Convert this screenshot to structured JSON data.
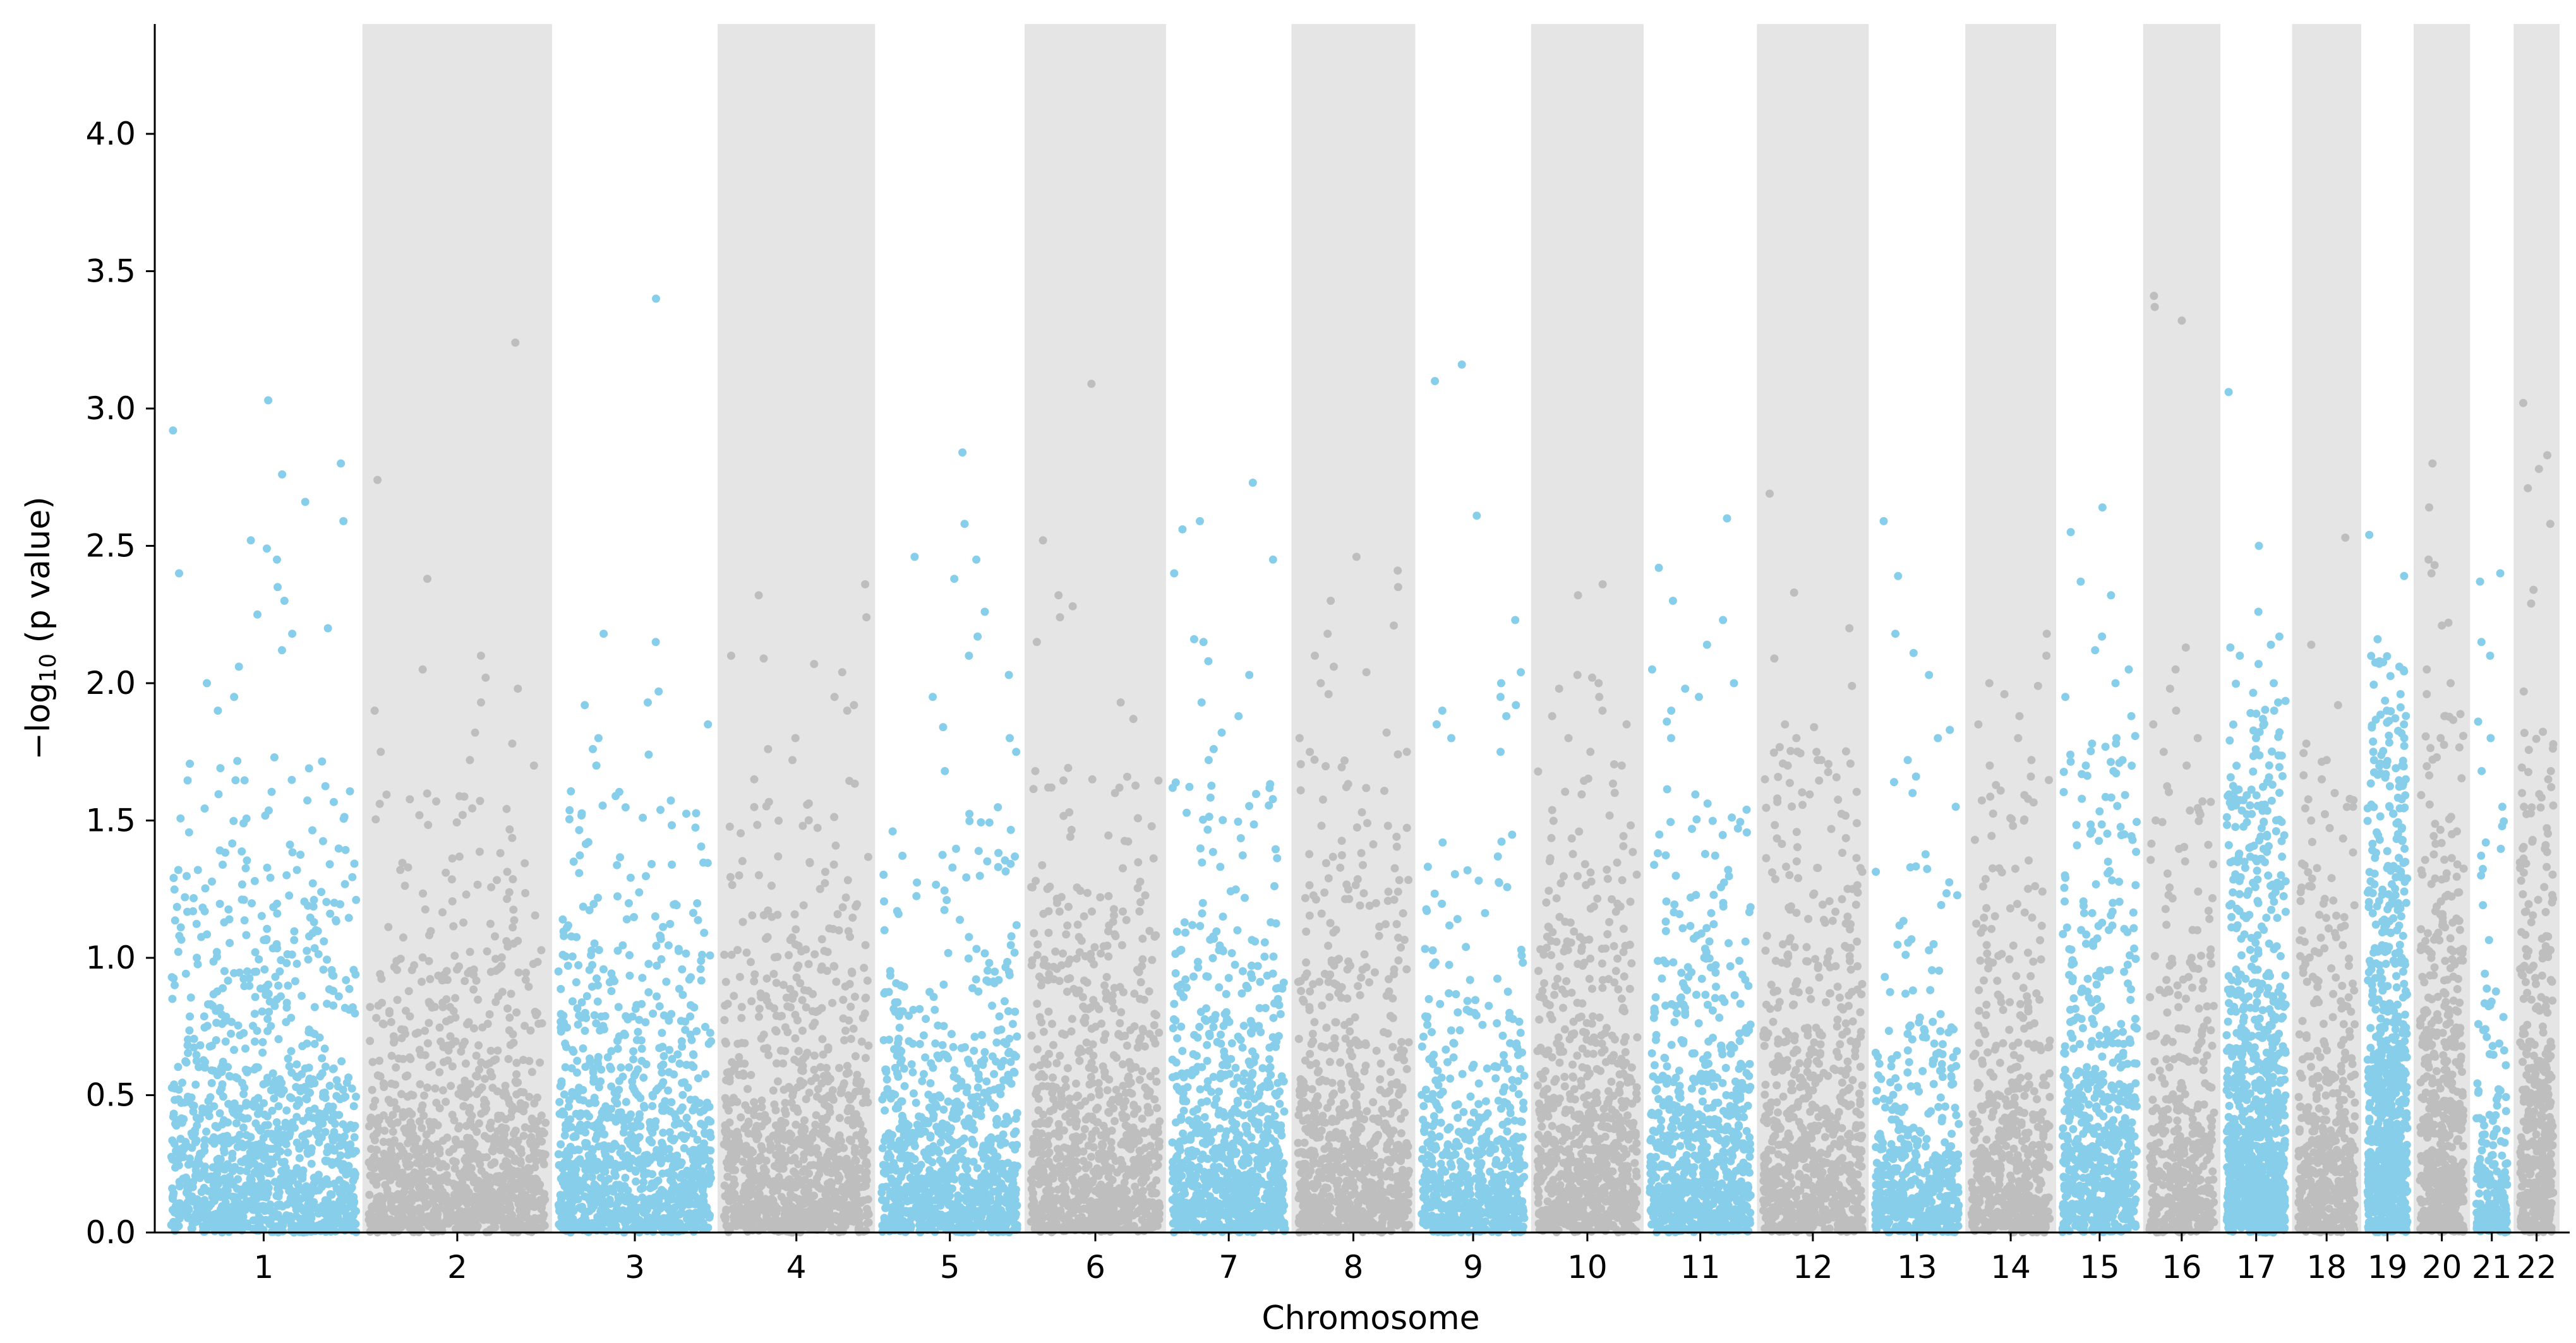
{
  "chart_data": {
    "type": "scatter",
    "subtype": "manhattan",
    "title": "",
    "xlabel": "Chromosome",
    "ylabel": {
      "prefix": "−log",
      "subscript": "10",
      "suffix": " (p value)"
    },
    "ylim": [
      0.0,
      4.4
    ],
    "yticks": [
      "0.0",
      "0.5",
      "1.0",
      "1.5",
      "2.0",
      "2.5",
      "3.0",
      "3.5",
      "4.0"
    ],
    "ytick_values": [
      0.0,
      0.5,
      1.0,
      1.5,
      2.0,
      2.5,
      3.0,
      3.5,
      4.0
    ],
    "grid": false,
    "legend": "none",
    "shading": "alternating chromosomes shaded light gray (#e5e5e5)",
    "colors": {
      "odd_points": "#87ceeb",
      "even_points": "#bebebe",
      "band": "#e5e5e5",
      "axis": "#000000"
    },
    "chromosomes": [
      {
        "label": "1",
        "span": 240,
        "n_points": 1100,
        "dense_max": 0.85,
        "peaks": [
          3.03,
          2.92,
          2.8,
          2.76,
          2.66,
          2.59,
          2.52,
          2.49,
          2.45,
          2.4,
          2.35,
          2.3,
          2.25,
          2.2,
          2.18,
          2.12,
          2.06,
          2.0,
          1.95,
          1.9
        ]
      },
      {
        "label": "2",
        "span": 230,
        "n_points": 1050,
        "dense_max": 0.7,
        "peaks": [
          3.24,
          2.74,
          2.38,
          2.1,
          2.05,
          2.02,
          1.98,
          1.93,
          1.9,
          1.82,
          1.78,
          1.75,
          1.72,
          1.7
        ]
      },
      {
        "label": "3",
        "span": 200,
        "n_points": 950,
        "dense_max": 0.75,
        "peaks": [
          3.4,
          2.18,
          2.15,
          1.97,
          1.93,
          1.92,
          1.85,
          1.8,
          1.76,
          1.74,
          1.7
        ]
      },
      {
        "label": "4",
        "span": 190,
        "n_points": 900,
        "dense_max": 0.75,
        "peaks": [
          2.36,
          2.32,
          2.24,
          2.1,
          2.09,
          2.07,
          2.04,
          1.95,
          1.92,
          1.9,
          1.8,
          1.76,
          1.72
        ]
      },
      {
        "label": "5",
        "span": 180,
        "n_points": 850,
        "dense_max": 0.65,
        "peaks": [
          2.84,
          2.58,
          2.46,
          2.45,
          2.38,
          2.26,
          2.17,
          2.1,
          2.03,
          1.95,
          1.84,
          1.8,
          1.75,
          1.68
        ]
      },
      {
        "label": "6",
        "span": 170,
        "n_points": 820,
        "dense_max": 0.8,
        "peaks": [
          3.09,
          2.52,
          2.32,
          2.28,
          2.24,
          2.15,
          1.93,
          1.87,
          1.68,
          1.65,
          1.62,
          1.6
        ]
      },
      {
        "label": "7",
        "span": 150,
        "n_points": 800,
        "dense_max": 0.75,
        "peaks": [
          2.73,
          2.59,
          2.56,
          2.45,
          2.4,
          2.16,
          2.15,
          2.08,
          2.03,
          1.93,
          1.88,
          1.82,
          1.76,
          1.72
        ]
      },
      {
        "label": "8",
        "span": 148,
        "n_points": 720,
        "dense_max": 0.85,
        "peaks": [
          2.46,
          2.41,
          2.35,
          2.3,
          2.21,
          2.18,
          2.1,
          2.06,
          2.04,
          2.0,
          1.96,
          1.82,
          1.8,
          1.75
        ]
      },
      {
        "label": "9",
        "span": 138,
        "n_points": 600,
        "dense_max": 0.55,
        "peaks": [
          3.16,
          3.1,
          2.61,
          2.23,
          2.04,
          2.0,
          1.95,
          1.92,
          1.9,
          1.88,
          1.85,
          1.8,
          1.75
        ]
      },
      {
        "label": "10",
        "span": 134,
        "n_points": 720,
        "dense_max": 0.85,
        "peaks": [
          2.36,
          2.32,
          2.03,
          2.02,
          2.0,
          1.98,
          1.95,
          1.9,
          1.88,
          1.85,
          1.8,
          1.75,
          1.7
        ]
      },
      {
        "label": "11",
        "span": 135,
        "n_points": 720,
        "dense_max": 0.75,
        "peaks": [
          2.6,
          2.42,
          2.3,
          2.23,
          2.14,
          2.05,
          2.0,
          1.98,
          1.95,
          1.9,
          1.86,
          1.8
        ]
      },
      {
        "label": "12",
        "span": 133,
        "n_points": 700,
        "dense_max": 0.9,
        "peaks": [
          2.69,
          2.33,
          2.2,
          2.09,
          1.99,
          1.85,
          1.84,
          1.8,
          1.75,
          1.72,
          1.7
        ]
      },
      {
        "label": "13",
        "span": 114,
        "n_points": 450,
        "dense_max": 0.5,
        "peaks": [
          2.59,
          2.39,
          2.18,
          2.11,
          2.03,
          1.83,
          1.8,
          1.72,
          1.66,
          1.64,
          1.6,
          1.55
        ]
      },
      {
        "label": "14",
        "span": 107,
        "n_points": 500,
        "dense_max": 0.75,
        "peaks": [
          2.18,
          2.1,
          2.0,
          1.99,
          1.96,
          1.88,
          1.85,
          1.8,
          1.72,
          1.7,
          1.66
        ]
      },
      {
        "label": "15",
        "span": 102,
        "n_points": 600,
        "dense_max": 0.95,
        "peaks": [
          2.64,
          2.55,
          2.37,
          2.32,
          2.17,
          2.12,
          2.05,
          2.0,
          1.95,
          1.88,
          1.8,
          1.78,
          1.7
        ]
      },
      {
        "label": "16",
        "span": 90,
        "n_points": 420,
        "dense_max": 0.8,
        "peaks": [
          3.41,
          3.37,
          3.32,
          2.13,
          2.05,
          1.98,
          1.9,
          1.85,
          1.8,
          1.75,
          1.7
        ]
      },
      {
        "label": "17",
        "span": 83,
        "n_points": 900,
        "dense_max": 1.1,
        "peaks": [
          3.06,
          2.5,
          2.26,
          2.17,
          2.14,
          2.13,
          2.1,
          2.07,
          2.0,
          1.93,
          1.9,
          1.87,
          1.8
        ]
      },
      {
        "label": "18",
        "span": 80,
        "n_points": 420,
        "dense_max": 0.85,
        "peaks": [
          2.53,
          2.14,
          1.92,
          1.78,
          1.72,
          1.65,
          1.6,
          1.55,
          1.5
        ]
      },
      {
        "label": "19",
        "span": 59,
        "n_points": 750,
        "dense_max": 1.2,
        "peaks": [
          2.54,
          2.39,
          2.16,
          2.08,
          2.06,
          1.96,
          1.9,
          1.85,
          1.8,
          1.75,
          1.7
        ]
      },
      {
        "label": "20",
        "span": 64,
        "n_points": 520,
        "dense_max": 1.0,
        "peaks": [
          2.8,
          2.64,
          2.45,
          2.43,
          2.4,
          2.22,
          2.21,
          2.05,
          2.0,
          1.96,
          1.88,
          1.8
        ]
      },
      {
        "label": "21",
        "span": 48,
        "n_points": 180,
        "dense_max": 0.6,
        "peaks": [
          2.4,
          2.37,
          2.15,
          2.1,
          1.86,
          1.8,
          1.68,
          1.55,
          1.42,
          1.3
        ]
      },
      {
        "label": "22",
        "span": 51,
        "n_points": 380,
        "dense_max": 1.0,
        "peaks": [
          3.02,
          2.83,
          2.78,
          2.71,
          2.58,
          2.34,
          2.29,
          1.97,
          1.68,
          1.65,
          1.6,
          1.55
        ]
      }
    ]
  }
}
